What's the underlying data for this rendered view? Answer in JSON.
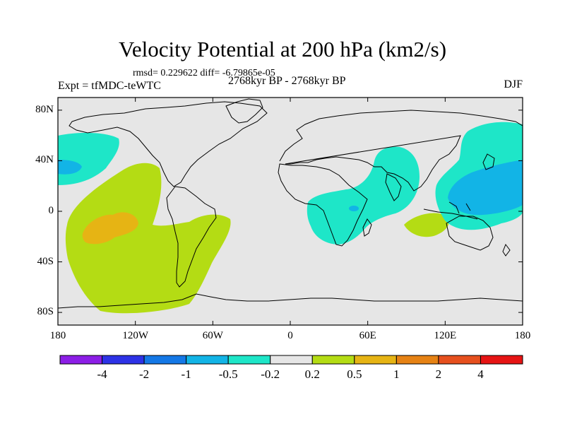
{
  "header": {
    "title": "Velocity Potential at 200 hPa (km2/s)",
    "stats": "rmsd= 0.229622 diff= -6.79865e-05",
    "experiment": "Expt = tfMDC-teWTC",
    "period": "2768kyr BP - 2768kyr BP",
    "season": "DJF"
  },
  "map": {
    "lat_labels": [
      "80N",
      "40N",
      "0",
      "40S",
      "80S"
    ],
    "lat_values": [
      80,
      40,
      0,
      -40,
      -80
    ],
    "lon_labels": [
      "180",
      "120W",
      "60W",
      "0",
      "60E",
      "120E",
      "180"
    ],
    "lon_values": [
      -180,
      -120,
      -60,
      0,
      60,
      120,
      180
    ],
    "lon_range": [
      -180,
      180
    ],
    "lat_range": [
      -90,
      90
    ],
    "neutral_color": "#e6e6e6"
  },
  "colorbar": {
    "labels": [
      "-4",
      "-2",
      "-1",
      "-0.5",
      "-0.2",
      "0.2",
      "0.5",
      "1",
      "2",
      "4"
    ],
    "colors": [
      "#8c1ee6",
      "#2d32e6",
      "#1478e6",
      "#12b4e6",
      "#1ee6c8",
      "#e6e6e6",
      "#b4dc14",
      "#e6b414",
      "#e68214",
      "#e6501e",
      "#e61414"
    ]
  }
}
